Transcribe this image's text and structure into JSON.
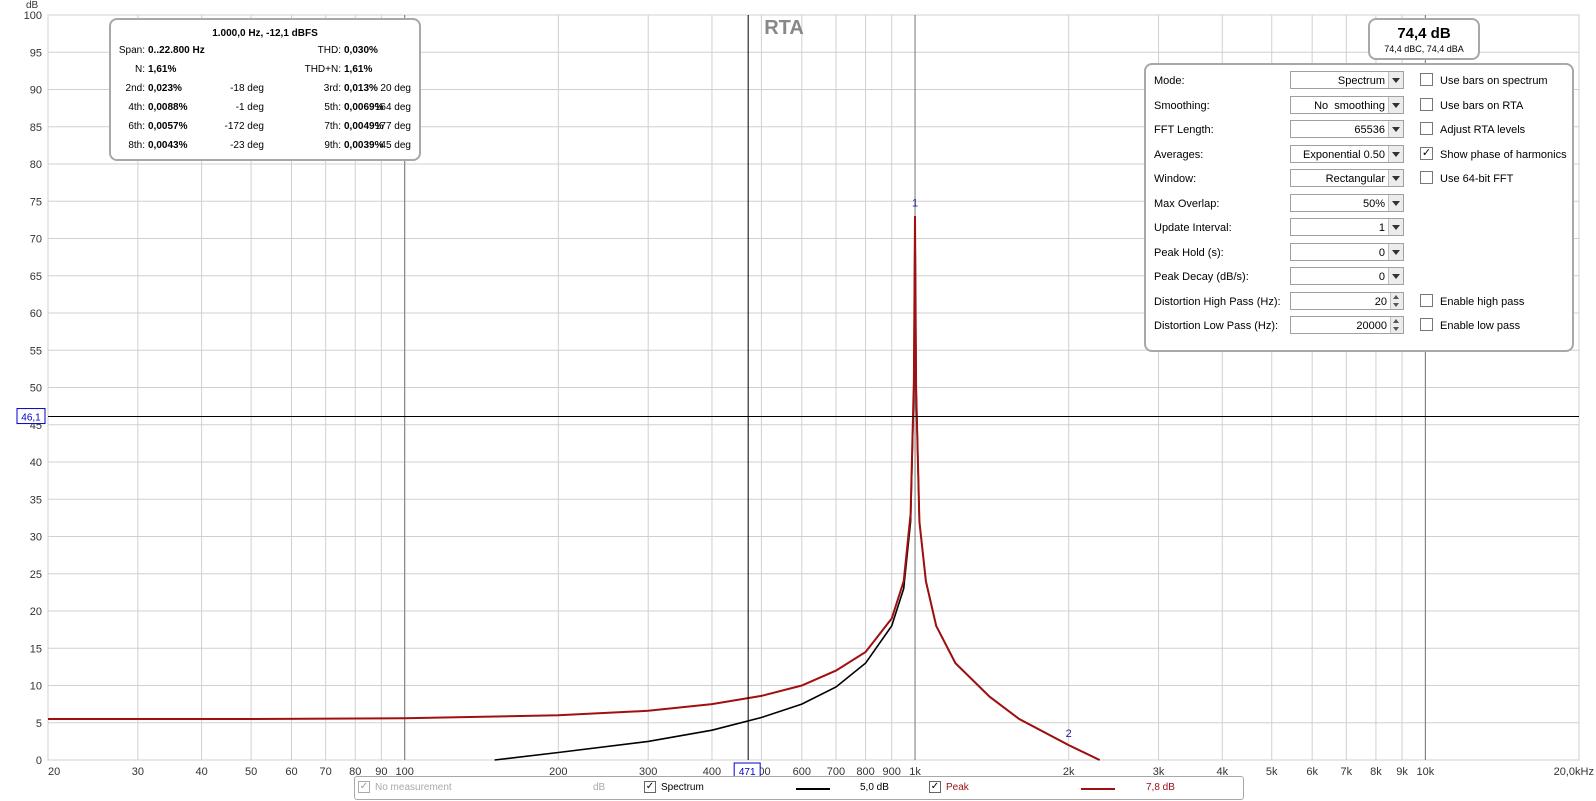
{
  "graph": {
    "title": "RTA",
    "y_unit": "dB",
    "cursor_y_label": "46,1",
    "cursor_x_label": "471",
    "marker_1": "1",
    "marker_2": "2",
    "colors": {
      "spectrum": "#000000",
      "peak": "#a01010",
      "grid": "#d0d0d0",
      "cursor_label": "#0000cc"
    }
  },
  "harmonics": {
    "title": "1.000,0 Hz, -12,1 dBFS",
    "span_label": "Span:",
    "span_value": "0..22.800 Hz",
    "thd_label": "THD:",
    "thd_value": "0,030%",
    "n_label": "N:",
    "n_value": "1,61%",
    "thdn_label": "THD+N:",
    "thdn_value": "1,61%",
    "rows": [
      {
        "l1": "2nd:",
        "v1": "0,023%",
        "d1": "-18 deg",
        "l2": "3rd:",
        "v2": "0,013%",
        "d2": "20 deg"
      },
      {
        "l1": "4th:",
        "v1": "0,0088%",
        "d1": "-1 deg",
        "l2": "5th:",
        "v2": "0,0069%",
        "d2": "164 deg"
      },
      {
        "l1": "6th:",
        "v1": "0,0057%",
        "d1": "-172 deg",
        "l2": "7th:",
        "v2": "0,0049%",
        "d2": "177 deg"
      },
      {
        "l1": "8th:",
        "v1": "0,0043%",
        "d1": "-23 deg",
        "l2": "9th:",
        "v2": "0,0039%",
        "d2": "45 deg"
      }
    ]
  },
  "level": {
    "main": "74,4 dB",
    "sub": "74,4 dBC, 74,4 dBA"
  },
  "settings": {
    "rows": [
      {
        "label": "Mode:",
        "value": "Spectrum",
        "ctl": "select",
        "check_label": "Use bars on spectrum",
        "checked": false
      },
      {
        "label": "Smoothing:",
        "value": "No  smoothing",
        "ctl": "select",
        "check_label": "Use bars on RTA",
        "checked": false
      },
      {
        "label": "FFT Length:",
        "value": "65536",
        "ctl": "select",
        "check_label": "Adjust RTA levels",
        "checked": false
      },
      {
        "label": "Averages:",
        "value": "Exponential 0.50",
        "ctl": "select",
        "check_label": "Show phase of harmonics",
        "checked": true
      },
      {
        "label": "Window:",
        "value": "Rectangular",
        "ctl": "select",
        "check_label": "Use 64-bit FFT",
        "checked": false
      },
      {
        "label": "Max Overlap:",
        "value": "50%",
        "ctl": "select"
      },
      {
        "label": "Update Interval:",
        "value": "1",
        "ctl": "select"
      },
      {
        "label": "Peak Hold (s):",
        "value": "0",
        "ctl": "select"
      },
      {
        "label": "Peak Decay (dB/s):",
        "value": "0",
        "ctl": "select"
      },
      {
        "label": "Distortion High Pass (Hz):",
        "value": "20",
        "ctl": "spin",
        "check_label": "Enable high pass",
        "checked": false
      },
      {
        "label": "Distortion Low Pass (Hz):",
        "value": "20000",
        "ctl": "spin",
        "check_label": "Enable low pass",
        "checked": false
      }
    ]
  },
  "legend": {
    "no_measurement": "No measurement",
    "no_measurement_unit": "dB",
    "spectrum_label": "Spectrum",
    "spectrum_value": "5,0 dB",
    "peak_label": "Peak",
    "peak_value": "7,8 dB"
  },
  "chart_data": {
    "type": "line",
    "title": "RTA",
    "xlabel": "",
    "ylabel": "dB",
    "x_scale": "log",
    "xlim": [
      20,
      20000
    ],
    "ylim": [
      0,
      100
    ],
    "grid": true,
    "y_ticks": [
      "0",
      "5",
      "10",
      "15",
      "20",
      "25",
      "30",
      "35",
      "40",
      "45",
      "50",
      "55",
      "60",
      "65",
      "70",
      "75",
      "80",
      "85",
      "90",
      "95",
      "100"
    ],
    "x_ticks": [
      {
        "v": 20,
        "t": "20"
      },
      {
        "v": 30,
        "t": "30"
      },
      {
        "v": 40,
        "t": "40"
      },
      {
        "v": 50,
        "t": "50"
      },
      {
        "v": 60,
        "t": "60"
      },
      {
        "v": 70,
        "t": "70"
      },
      {
        "v": 80,
        "t": "80"
      },
      {
        "v": 90,
        "t": "90"
      },
      {
        "v": 100,
        "t": "100"
      },
      {
        "v": 200,
        "t": "200"
      },
      {
        "v": 300,
        "t": "300"
      },
      {
        "v": 400,
        "t": "400"
      },
      {
        "v": 500,
        "t": "500"
      },
      {
        "v": 600,
        "t": "600"
      },
      {
        "v": 700,
        "t": "700"
      },
      {
        "v": 800,
        "t": "800"
      },
      {
        "v": 900,
        "t": "900"
      },
      {
        "v": 1000,
        "t": "1k"
      },
      {
        "v": 2000,
        "t": "2k"
      },
      {
        "v": 3000,
        "t": "3k"
      },
      {
        "v": 4000,
        "t": "4k"
      },
      {
        "v": 5000,
        "t": "5k"
      },
      {
        "v": 6000,
        "t": "6k"
      },
      {
        "v": 7000,
        "t": "7k"
      },
      {
        "v": 8000,
        "t": "8k"
      },
      {
        "v": 9000,
        "t": "9k"
      },
      {
        "v": 10000,
        "t": "10k"
      },
      {
        "v": 20000,
        "t": "20,0kHz"
      }
    ],
    "series": [
      {
        "name": "Spectrum",
        "color": "#000000",
        "x": [
          150,
          200,
          300,
          400,
          500,
          600,
          700,
          800,
          900,
          950,
          980,
          995,
          1000,
          1005,
          1020,
          1050,
          1100,
          1200,
          1400,
          1600,
          2000,
          2300
        ],
        "y": [
          0,
          1,
          2.5,
          4,
          5.7,
          7.5,
          9.8,
          13,
          18,
          23,
          32,
          50,
          73,
          50,
          32,
          24,
          18,
          13,
          8.5,
          5.5,
          2,
          0
        ]
      },
      {
        "name": "Peak",
        "color": "#a01010",
        "x": [
          20,
          50,
          100,
          200,
          300,
          400,
          500,
          600,
          700,
          800,
          900,
          950,
          980,
          995,
          1000,
          1005,
          1020,
          1050,
          1100,
          1200,
          1400,
          1600,
          2000,
          2300
        ],
        "y": [
          5.5,
          5.5,
          5.6,
          6,
          6.6,
          7.5,
          8.6,
          10,
          12,
          14.5,
          19,
          24,
          33,
          51,
          73,
          50,
          32,
          24,
          18,
          13,
          8.5,
          5.5,
          2,
          0
        ]
      }
    ],
    "cursor": {
      "x": 471,
      "y": 46.1
    },
    "markers": [
      {
        "label": "1",
        "x": 1000,
        "y": 74
      },
      {
        "label": "2",
        "x": 2000,
        "y": 2
      }
    ]
  }
}
